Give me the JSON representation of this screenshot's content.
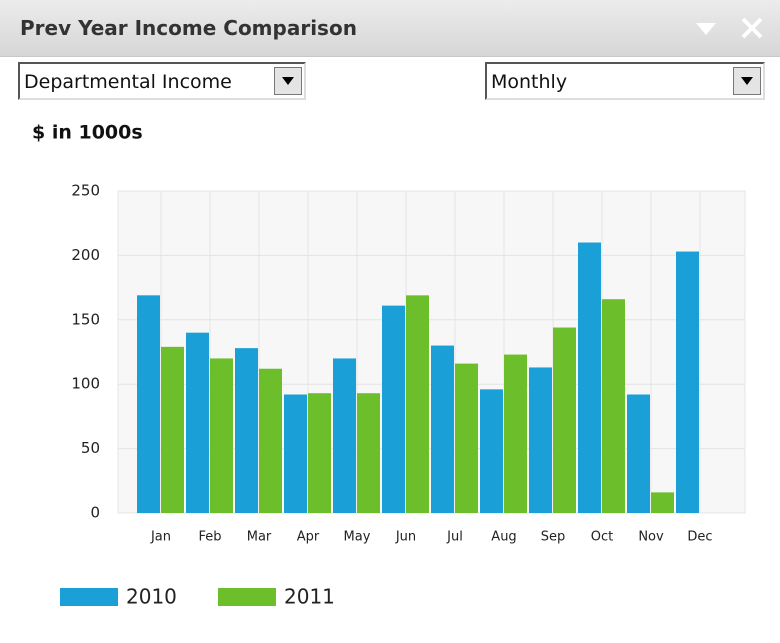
{
  "header": {
    "title": "Prev Year Income Comparison"
  },
  "controls": {
    "report": "Departmental Income",
    "period": "Monthly"
  },
  "chart_data": {
    "type": "bar",
    "title": "$ in 1000s",
    "categories": [
      "Jan",
      "Feb",
      "Mar",
      "Apr",
      "May",
      "Jun",
      "Jul",
      "Aug",
      "Sep",
      "Oct",
      "Nov",
      "Dec"
    ],
    "series": [
      {
        "name": "2010",
        "color": "#1a9fd6",
        "values": [
          169,
          140,
          128,
          92,
          120,
          161,
          130,
          96,
          113,
          210,
          92,
          203
        ]
      },
      {
        "name": "2011",
        "color": "#6cbf2a",
        "values": [
          129,
          120,
          112,
          93,
          93,
          169,
          116,
          123,
          144,
          166,
          16,
          null
        ]
      }
    ],
    "ylim": [
      0,
      250
    ],
    "yticks": [
      0,
      50,
      100,
      150,
      200,
      250
    ],
    "grid": true,
    "legend": "bottom"
  }
}
